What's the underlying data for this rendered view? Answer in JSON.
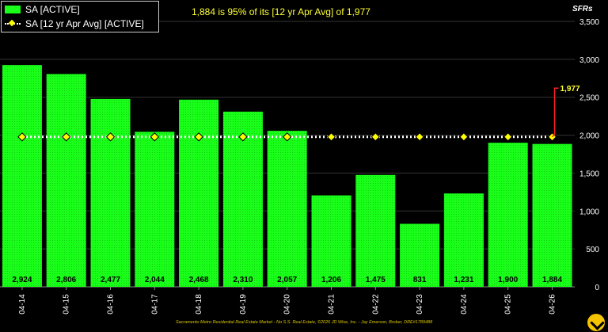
{
  "chart_data": {
    "type": "bar",
    "title": "1,884 is 95% of its [12 yr Apr Avg] of 1,977",
    "categories": [
      "04-14",
      "04-15",
      "04-16",
      "04-17",
      "04-18",
      "04-19",
      "04-20",
      "04-21",
      "04-22",
      "04-23",
      "04-24",
      "04-25",
      "04-26"
    ],
    "series": [
      {
        "name": "SA [ACTIVE]",
        "type": "bar",
        "values": [
          2924,
          2806,
          2477,
          2044,
          2468,
          2310,
          2057,
          1206,
          1475,
          831,
          1231,
          1900,
          1884
        ]
      },
      {
        "name": "SA [12 yr Apr Avg] [ACTIVE]",
        "type": "line",
        "values": [
          1977,
          1977,
          1977,
          1977,
          1977,
          1977,
          1977,
          1977,
          1977,
          1977,
          1977,
          1977,
          1977
        ]
      }
    ],
    "data_labels": [
      "2,924",
      "2,806",
      "2,477",
      "2,044",
      "2,468",
      "2,310",
      "2,057",
      "1,206",
      "1,475",
      "831",
      "1,231",
      "1,900",
      "1,884"
    ],
    "ylabel": "SFRs",
    "ylim": [
      0,
      3500
    ],
    "yticks": [
      0,
      500,
      1000,
      1500,
      2000,
      2500,
      3000,
      3500
    ],
    "ytick_labels": [
      "0",
      "500",
      "1,000",
      "1,500",
      "2,000",
      "2,500",
      "3,000",
      "3,500"
    ],
    "annotation": {
      "label": "1,977",
      "category": "04-26",
      "value": 1977
    },
    "grid": true,
    "legend_position": "top-left",
    "colors": {
      "background": "#000000",
      "bar": "#19ff19",
      "avg_line": "#ffffff",
      "avg_marker": "#ffff00",
      "annotation_line": "#ff2020",
      "annotation_text": "#ffff33",
      "title_text": "#ffff33"
    }
  },
  "legend": {
    "bar_label": "SA [ACTIVE]",
    "line_label": "SA [12 yr Apr Avg] [ACTIVE]"
  },
  "footer": "Sacramento Metro Residential Real Estate Market - No S.S. Real Estate, ©2026 JD Wise, Inc. - Jay Emerson, Broker, DRE#1789488",
  "logo_icon": "arrow-logo-icon"
}
